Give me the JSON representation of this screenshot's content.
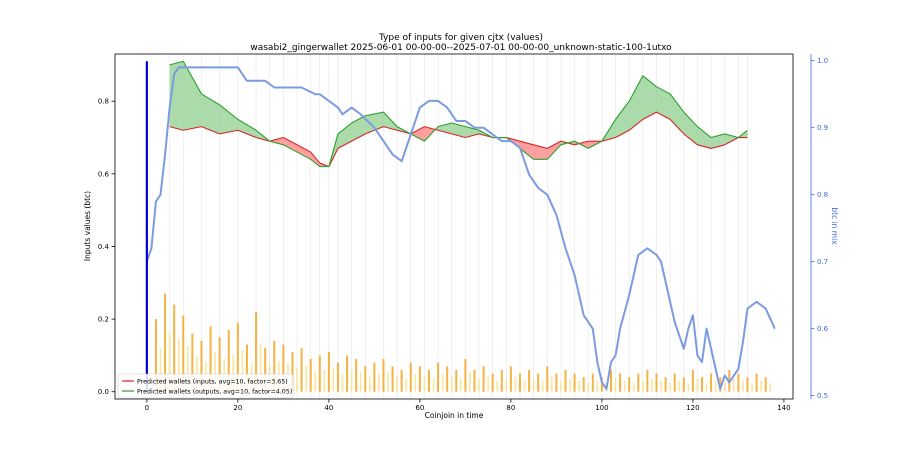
{
  "chart_data": {
    "type": "line",
    "title": "Type of inputs for given cjtx (values)",
    "subtitle": "wasabi2_gingerwallet 2025-06-01 00-00-00--2025-07-01 00-00-00_unknown-static-100-1utxo",
    "xlabel": "Coinjoin in time",
    "ylabel": "Inputs values (btc)",
    "y2label": "btc in mix",
    "xlim": [
      -7,
      142
    ],
    "ylim": [
      -0.02,
      0.93
    ],
    "y2lim": [
      0.495,
      1.01
    ],
    "xticks": [
      "0",
      "20",
      "40",
      "60",
      "80",
      "100",
      "120",
      "140"
    ],
    "yticks": [
      "0.0",
      "0.2",
      "0.4",
      "0.6",
      "0.8"
    ],
    "y2ticks": [
      "0.5",
      "0.6",
      "0.7",
      "0.8",
      "0.9",
      "1.0"
    ],
    "grid": "vertical-x",
    "legend_position": "lower-left",
    "colors": {
      "inputs": "#d62728",
      "inputs_fill": "#ff7f7f",
      "outputs": "#2ca02c",
      "outputs_fill": "#8fce8f",
      "btc_in_mix": "#7b9be0",
      "bars": "#f5a623",
      "bars_light": "#f8e08a",
      "marker": "#0000cc"
    },
    "marker_x": 0,
    "series": [
      {
        "name": "Predicted wallets (inputs, avg=10, factor=3.65)",
        "axis": "left",
        "x": [
          5,
          8,
          12,
          16,
          20,
          24,
          27,
          30,
          33,
          36,
          38,
          40,
          42,
          45,
          48,
          52,
          55,
          58,
          61,
          64,
          67,
          70,
          73,
          76,
          79,
          82,
          85,
          88,
          91,
          94,
          97,
          100,
          103,
          106,
          109,
          112,
          115,
          118,
          121,
          124,
          127,
          130,
          132
        ],
        "values": [
          0.73,
          0.72,
          0.73,
          0.71,
          0.72,
          0.7,
          0.69,
          0.7,
          0.68,
          0.66,
          0.63,
          0.62,
          0.67,
          0.69,
          0.71,
          0.73,
          0.72,
          0.71,
          0.73,
          0.72,
          0.71,
          0.7,
          0.71,
          0.7,
          0.7,
          0.69,
          0.68,
          0.67,
          0.69,
          0.68,
          0.69,
          0.69,
          0.7,
          0.72,
          0.75,
          0.77,
          0.75,
          0.71,
          0.68,
          0.67,
          0.68,
          0.7,
          0.7
        ]
      },
      {
        "name": "Predicted wallets (outputs, avg=10, factor=4.05)",
        "axis": "left",
        "x": [
          5,
          8,
          12,
          16,
          20,
          24,
          27,
          30,
          33,
          36,
          38,
          40,
          42,
          45,
          48,
          52,
          55,
          58,
          61,
          64,
          67,
          70,
          73,
          76,
          79,
          82,
          85,
          88,
          91,
          94,
          97,
          100,
          103,
          106,
          109,
          112,
          115,
          118,
          121,
          124,
          127,
          130,
          132
        ],
        "values": [
          0.9,
          0.91,
          0.82,
          0.79,
          0.75,
          0.72,
          0.69,
          0.68,
          0.66,
          0.64,
          0.62,
          0.62,
          0.71,
          0.74,
          0.76,
          0.77,
          0.73,
          0.71,
          0.69,
          0.73,
          0.74,
          0.73,
          0.72,
          0.7,
          0.7,
          0.67,
          0.64,
          0.64,
          0.68,
          0.69,
          0.67,
          0.69,
          0.75,
          0.8,
          0.87,
          0.84,
          0.82,
          0.77,
          0.73,
          0.7,
          0.71,
          0.7,
          0.72
        ]
      },
      {
        "name": "btc in mix",
        "axis": "right",
        "x": [
          0,
          1,
          2,
          3,
          4,
          5,
          6,
          7,
          8,
          10,
          12,
          15,
          18,
          19,
          20,
          22,
          26,
          28,
          31,
          34,
          37,
          38,
          40,
          42,
          43,
          45,
          47,
          50,
          52,
          54,
          56,
          58,
          60,
          62,
          64,
          66,
          68,
          70,
          72,
          74,
          76,
          78,
          80,
          82,
          84,
          86,
          88,
          90,
          92,
          94,
          96,
          98,
          99,
          100,
          101,
          102,
          103,
          104,
          106,
          108,
          110,
          112,
          113,
          114,
          116,
          117,
          118,
          119,
          120,
          121,
          122,
          123,
          124,
          125,
          126,
          127,
          128,
          129,
          130,
          131,
          132,
          134,
          136,
          138
        ],
        "values": [
          0.7,
          0.72,
          0.79,
          0.8,
          0.86,
          0.93,
          0.98,
          0.99,
          0.99,
          0.99,
          0.99,
          0.99,
          0.99,
          0.99,
          0.99,
          0.97,
          0.97,
          0.96,
          0.96,
          0.96,
          0.95,
          0.95,
          0.94,
          0.93,
          0.92,
          0.93,
          0.92,
          0.9,
          0.88,
          0.86,
          0.85,
          0.89,
          0.93,
          0.94,
          0.94,
          0.93,
          0.91,
          0.91,
          0.9,
          0.9,
          0.89,
          0.88,
          0.88,
          0.87,
          0.83,
          0.81,
          0.8,
          0.77,
          0.72,
          0.68,
          0.62,
          0.6,
          0.55,
          0.52,
          0.51,
          0.55,
          0.56,
          0.6,
          0.65,
          0.71,
          0.72,
          0.71,
          0.7,
          0.67,
          0.61,
          0.59,
          0.57,
          0.6,
          0.62,
          0.56,
          0.55,
          0.6,
          0.57,
          0.54,
          0.51,
          0.53,
          0.52,
          0.53,
          0.54,
          0.58,
          0.63,
          0.64,
          0.63,
          0.6
        ]
      }
    ],
    "bars": {
      "name": "input values",
      "axis": "left",
      "x": [
        2,
        4,
        6,
        8,
        10,
        12,
        14,
        16,
        18,
        20,
        22,
        24,
        26,
        28,
        30,
        32,
        34,
        36,
        38,
        40,
        42,
        44,
        46,
        48,
        50,
        52,
        54,
        56,
        58,
        60,
        62,
        64,
        66,
        68,
        70,
        72,
        74,
        76,
        78,
        80,
        82,
        84,
        86,
        88,
        90,
        92,
        94,
        96,
        98,
        100,
        102,
        104,
        106,
        108,
        110,
        112,
        114,
        116,
        118,
        120,
        122,
        124,
        126,
        128,
        130,
        132,
        134,
        136
      ],
      "values": [
        0.2,
        0.27,
        0.24,
        0.21,
        0.16,
        0.14,
        0.18,
        0.15,
        0.17,
        0.19,
        0.13,
        0.22,
        0.12,
        0.14,
        0.13,
        0.11,
        0.12,
        0.09,
        0.1,
        0.11,
        0.08,
        0.1,
        0.09,
        0.07,
        0.08,
        0.09,
        0.07,
        0.06,
        0.08,
        0.07,
        0.06,
        0.08,
        0.07,
        0.06,
        0.09,
        0.06,
        0.07,
        0.05,
        0.06,
        0.07,
        0.05,
        0.06,
        0.05,
        0.07,
        0.05,
        0.06,
        0.05,
        0.04,
        0.05,
        0.04,
        0.06,
        0.05,
        0.04,
        0.05,
        0.06,
        0.05,
        0.04,
        0.05,
        0.04,
        0.06,
        0.04,
        0.05,
        0.04,
        0.06,
        0.05,
        0.04,
        0.05,
        0.04
      ]
    }
  }
}
